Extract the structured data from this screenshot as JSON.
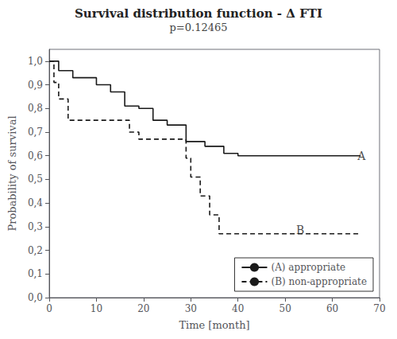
{
  "chart_data": {
    "type": "line",
    "title": "Survival distribution function - Δ FTI",
    "subtitle": "p=0.12465",
    "x_label": "Time [month]",
    "y_label": "Probability of survival",
    "xlim": [
      0,
      70
    ],
    "ylim": [
      0.0,
      1.05
    ],
    "xticks": [
      0,
      10,
      20,
      30,
      40,
      50,
      60,
      70
    ],
    "yticks": [
      {
        "value": 0.0,
        "label": "0,0"
      },
      {
        "value": 0.1,
        "label": "0,1"
      },
      {
        "value": 0.2,
        "label": "0,2"
      },
      {
        "value": 0.3,
        "label": "0,3"
      },
      {
        "value": 0.4,
        "label": "0,4"
      },
      {
        "value": 0.5,
        "label": "0,5"
      },
      {
        "value": 0.6,
        "label": "0,6"
      },
      {
        "value": 0.7,
        "label": "0,7"
      },
      {
        "value": 0.8,
        "label": "0,8"
      },
      {
        "value": 0.9,
        "label": "0,9"
      },
      {
        "value": 1.0,
        "label": "1,0"
      }
    ],
    "grid": false,
    "legend": "lower right",
    "series": [
      {
        "name": "(A) appropriate",
        "color": "#1a1a1a",
        "line_style": "solid",
        "x": [
          0,
          2,
          2,
          5,
          5,
          10,
          10,
          13,
          13,
          16,
          16,
          19,
          19,
          22,
          22,
          25,
          25,
          29,
          29,
          33,
          33,
          37,
          37,
          40,
          40,
          66
        ],
        "values": [
          1.0,
          1.0,
          0.96,
          0.96,
          0.93,
          0.93,
          0.9,
          0.9,
          0.87,
          0.87,
          0.81,
          0.81,
          0.8,
          0.8,
          0.75,
          0.75,
          0.73,
          0.73,
          0.66,
          0.66,
          0.64,
          0.64,
          0.61,
          0.61,
          0.6,
          0.6
        ]
      },
      {
        "name": "(B) non-appropriate",
        "color": "#1a1a1a",
        "line_style": "dashed",
        "x": [
          0,
          1,
          1,
          2,
          2,
          4,
          4,
          17,
          17,
          19,
          19,
          29,
          29,
          30,
          30,
          32,
          32,
          34,
          34,
          36,
          36,
          40,
          40,
          66
        ],
        "values": [
          1.0,
          1.0,
          0.91,
          0.91,
          0.84,
          0.84,
          0.75,
          0.75,
          0.7,
          0.7,
          0.67,
          0.67,
          0.59,
          0.59,
          0.51,
          0.51,
          0.43,
          0.43,
          0.35,
          0.35,
          0.27,
          0.27,
          0.27,
          0.27
        ]
      }
    ],
    "annotations": [
      {
        "text": "A",
        "x": 65,
        "y": 0.6
      },
      {
        "text": "B",
        "x": 52,
        "y": 0.285
      }
    ]
  }
}
